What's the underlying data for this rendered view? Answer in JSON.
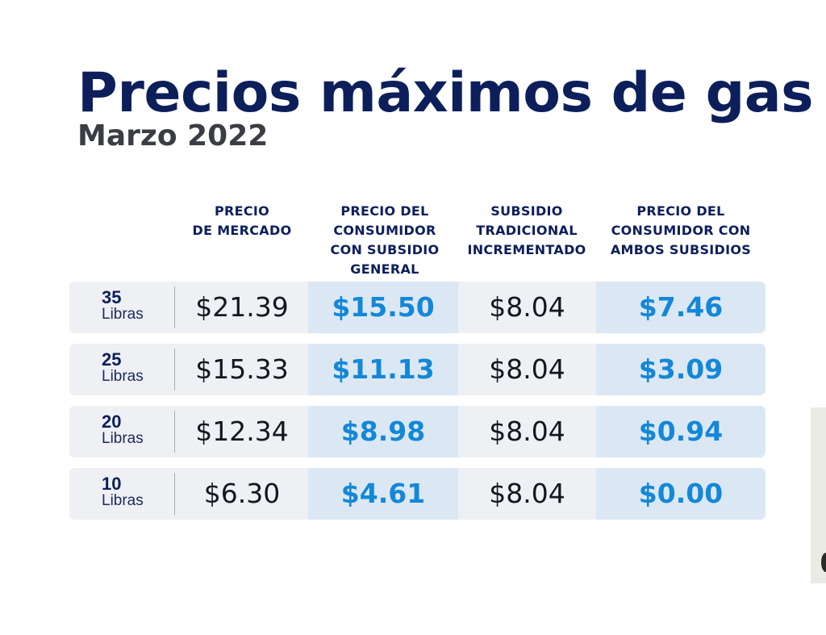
{
  "title": "Precios máximos de gas",
  "subtitle": "Marzo 2022",
  "columns": [
    [
      "PRECIO",
      "DE MERCADO"
    ],
    [
      "PRECIO DEL",
      "CONSUMIDOR",
      "CON SUBSIDIO",
      "GENERAL"
    ],
    [
      "SUBSIDIO",
      "TRADICIONAL",
      "INCREMENTADO"
    ],
    [
      "PRECIO DEL",
      "CONSUMIDOR CON",
      "AMBOS SUBSIDIOS"
    ]
  ],
  "rows": [
    {
      "qty": "35",
      "unit": "Libras",
      "market": "$21.39",
      "general": "$15.50",
      "subsidy": "$8.04",
      "both": "$7.46"
    },
    {
      "qty": "25",
      "unit": "Libras",
      "market": "$15.33",
      "general": "$11.13",
      "subsidy": "$8.04",
      "both": "$3.09"
    },
    {
      "qty": "20",
      "unit": "Libras",
      "market": "$12.34",
      "general": "$8.98",
      "subsidy": "$8.04",
      "both": "$0.94"
    },
    {
      "qty": "10",
      "unit": "Libras",
      "market": "$6.30",
      "general": "$4.61",
      "subsidy": "$8.04",
      "both": "$0.00"
    }
  ],
  "colors": {
    "title": "#0c1f5b",
    "subtitle": "#3a3d44",
    "highlight_value": "#1487d8",
    "row_background": "#eef0f3",
    "highlight_background": "#dbe8f4"
  }
}
